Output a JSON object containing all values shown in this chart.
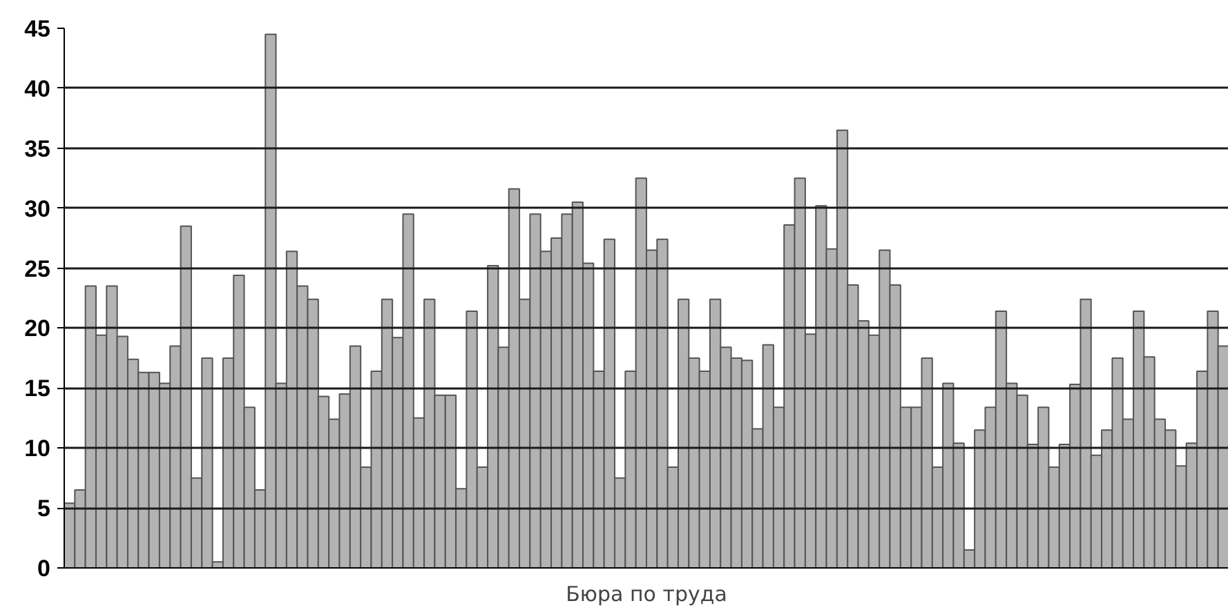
{
  "chart_data": {
    "type": "bar",
    "xlabel": "Бюра по труда",
    "categories": [
      null,
      null,
      null,
      null,
      null,
      null,
      null,
      null,
      null,
      null,
      null,
      null,
      null,
      null,
      null,
      null,
      null,
      null,
      null,
      null,
      null,
      null,
      null,
      null,
      null,
      null,
      null,
      null,
      null,
      null,
      null,
      null,
      null,
      null,
      null,
      null,
      null,
      null,
      null,
      null,
      null,
      null,
      null,
      null,
      null,
      null,
      null,
      null,
      null,
      null,
      null,
      null,
      null,
      null,
      null,
      null,
      null,
      null,
      null,
      null,
      null,
      null,
      null,
      null,
      null,
      null,
      null,
      null,
      null,
      null,
      null,
      null,
      null,
      null,
      null,
      null,
      null,
      null,
      null,
      null,
      null,
      null,
      null,
      null,
      null,
      null,
      null,
      null,
      null,
      null,
      null,
      null,
      null,
      null,
      null,
      null,
      null,
      null,
      null,
      null,
      null,
      null,
      null,
      null,
      null,
      null,
      null,
      null,
      null,
      null
    ],
    "values": [
      5.4,
      6.5,
      23.5,
      19.4,
      23.5,
      19.3,
      17.4,
      16.3,
      16.3,
      15.4,
      18.5,
      28.5,
      7.5,
      17.5,
      0.5,
      17.5,
      24.4,
      13.4,
      6.5,
      44.5,
      15.4,
      26.4,
      23.5,
      22.4,
      14.3,
      12.4,
      14.5,
      18.5,
      8.4,
      16.4,
      22.4,
      19.2,
      29.5,
      12.5,
      22.4,
      14.4,
      14.4,
      6.6,
      21.4,
      8.4,
      25.2,
      18.4,
      31.6,
      22.4,
      29.5,
      26.4,
      27.5,
      29.5,
      30.5,
      25.4,
      16.4,
      27.4,
      7.5,
      16.4,
      32.5,
      26.5,
      27.4,
      8.4,
      22.4,
      17.5,
      16.4,
      22.4,
      18.4,
      17.5,
      17.3,
      11.6,
      18.6,
      13.4,
      28.6,
      32.5,
      19.5,
      30.2,
      26.6,
      36.5,
      23.6,
      20.6,
      19.4,
      26.5,
      23.6,
      13.4,
      13.4,
      17.5,
      8.4,
      15.4,
      10.4,
      1.5,
      11.5,
      13.4,
      21.4,
      15.4,
      14.4,
      10.3,
      13.4,
      8.4,
      10.3,
      15.3,
      22.4,
      9.4,
      11.5,
      17.5,
      12.4,
      21.4,
      17.6,
      12.4,
      11.5,
      8.5,
      10.4,
      16.4,
      21.4,
      18.5
    ],
    "color": "#b3b3b3",
    "ylim": [
      0,
      45
    ],
    "yticks": [
      0,
      5,
      10,
      15,
      20,
      25,
      30,
      35,
      40,
      45
    ],
    "grid": "y",
    "tick_labels": "y"
  }
}
